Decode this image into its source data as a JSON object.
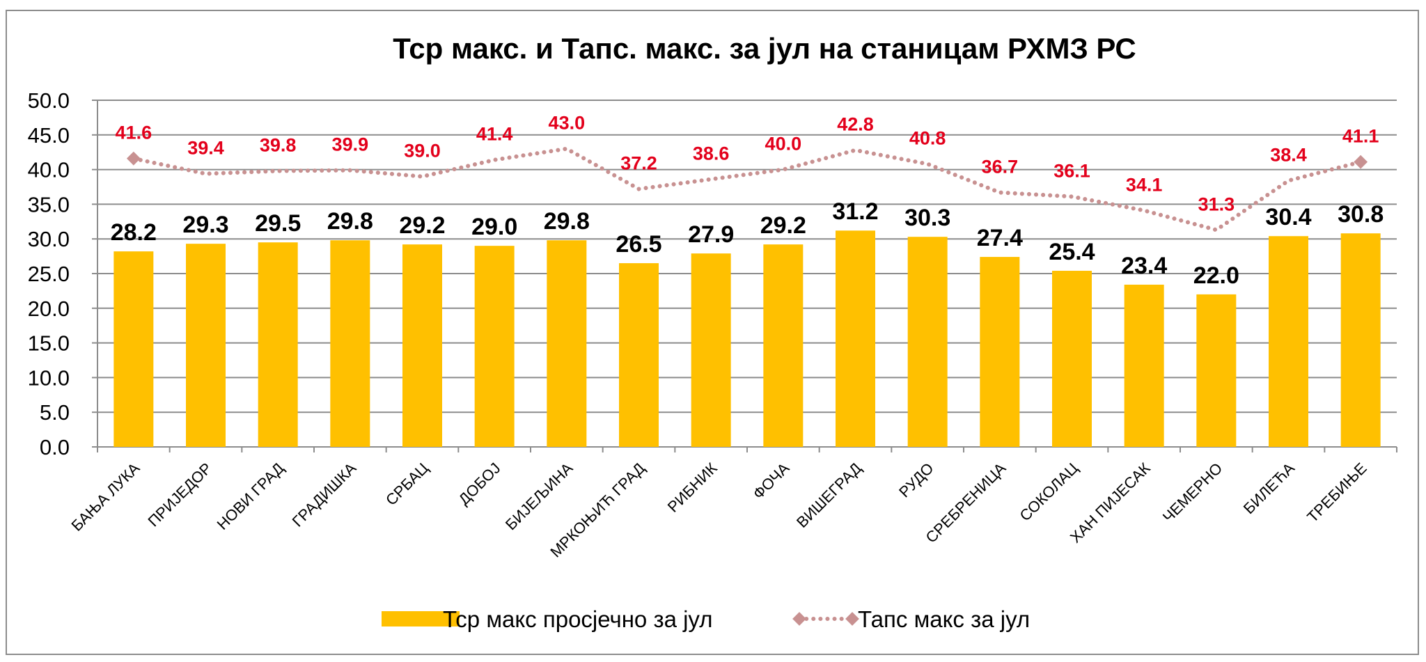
{
  "chart_data": {
    "type": "bar",
    "title": "Тср макс. и Тапс. макс.  за јул на станицам РХМЗ РС",
    "xlabel": "",
    "ylabel": "",
    "ylim": [
      0,
      50
    ],
    "yticks": [
      "0.0",
      "5.0",
      "10.0",
      "15.0",
      "20.0",
      "25.0",
      "30.0",
      "35.0",
      "40.0",
      "45.0",
      "50.0"
    ],
    "grid": true,
    "legend_position": "bottom",
    "categories": [
      "БАЊА ЛУКА",
      "ПРИЈЕДОР",
      "НОВИ ГРАД",
      "ГРАДИШКА",
      "СРБАЦ",
      "ДОБОЈ",
      "БИЈЕЉИНА",
      "МРКОЊИЋ ГРАД",
      "РИБНИК",
      "ФОЧА",
      "ВИШЕГРАД",
      "РУДО",
      "СРЕБРЕНИЦА",
      "СОКОЛАЦ",
      "ХАН ПИЈЕСАК",
      "ЧЕМЕРНО",
      "БИЛЕЋА",
      "ТРЕБИЊЕ"
    ],
    "series": [
      {
        "name": "Тср макс просјечно за јул",
        "type": "bar",
        "color": "#FFC000",
        "values": [
          28.2,
          29.3,
          29.5,
          29.8,
          29.2,
          29.0,
          29.8,
          26.5,
          27.9,
          29.2,
          31.2,
          30.3,
          27.4,
          25.4,
          23.4,
          22.0,
          30.4,
          30.8
        ],
        "labels": [
          "28.2",
          "29.3",
          "29.5",
          "29.8",
          "29.2",
          "29.0",
          "29.8",
          "26.5",
          "27.9",
          "29.2",
          "31.2",
          "30.3",
          "27.4",
          "25.4",
          "23.4",
          "22.0",
          "30.4",
          "30.8"
        ]
      },
      {
        "name": "Тапс макс за јул",
        "type": "line",
        "style": "dotted",
        "color": "#C89191",
        "label_color": "#E3001B",
        "values": [
          41.6,
          39.4,
          39.8,
          39.9,
          39.0,
          41.4,
          43.0,
          37.2,
          38.6,
          40.0,
          42.8,
          40.8,
          36.7,
          36.1,
          34.1,
          31.3,
          38.4,
          41.1
        ],
        "labels": [
          "41.6",
          "39.4",
          "39.8",
          "39.9",
          "39.0",
          "41.4",
          "43.0",
          "37.2",
          "38.6",
          "40.0",
          "42.8",
          "40.8",
          "36.7",
          "36.1",
          "34.1",
          "31.3",
          "38.4",
          "41.1"
        ]
      }
    ]
  }
}
